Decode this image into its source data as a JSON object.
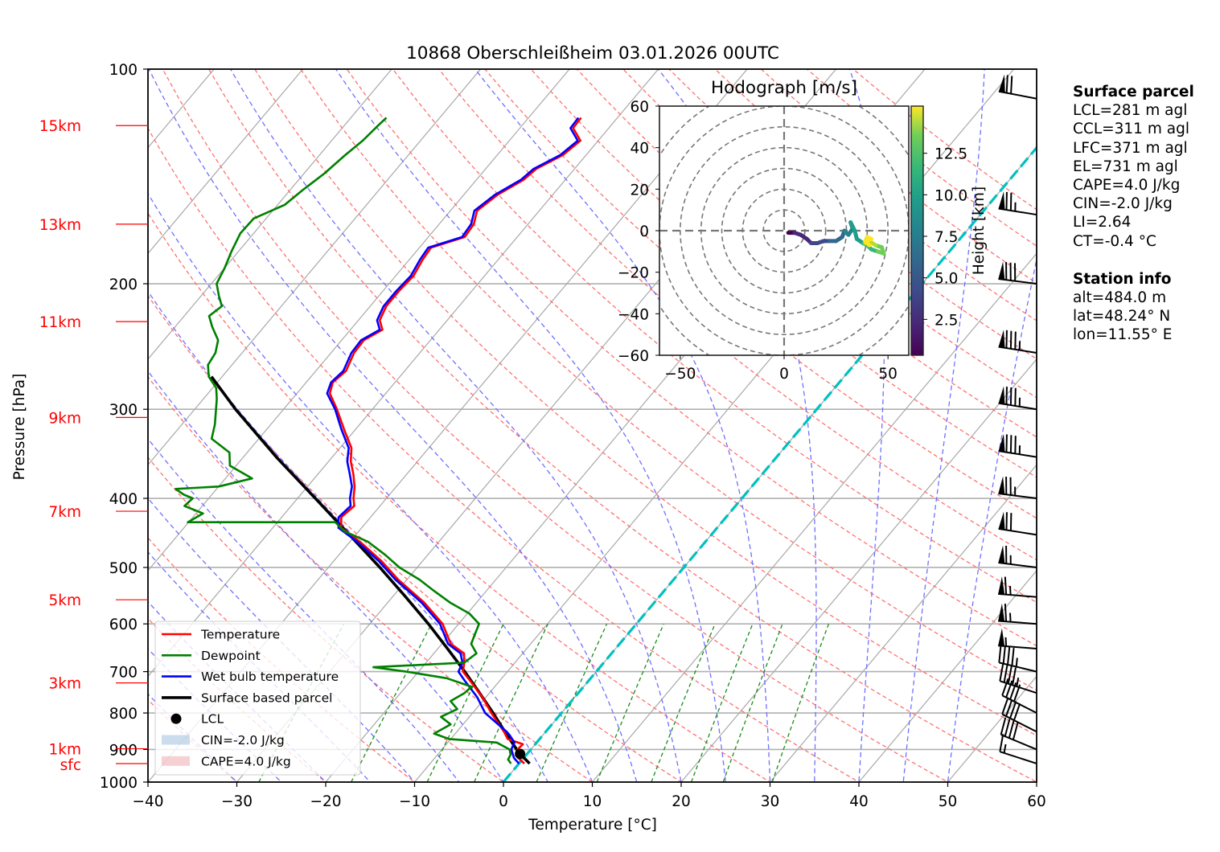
{
  "chart_data": {
    "type": "line",
    "subtype": "skew-T log-p",
    "title": "10868 Oberschleißheim 03.01.2026 00UTC",
    "xlabel": "Temperature [°C]",
    "ylabel": "Pressure [hPa]",
    "xlim": [
      -40,
      60
    ],
    "ylim": [
      1000,
      100
    ],
    "x_ticks": [
      -40,
      -30,
      -20,
      -10,
      0,
      10,
      20,
      30,
      40,
      50,
      60
    ],
    "y_ticks": [
      100,
      200,
      300,
      400,
      500,
      600,
      700,
      800,
      900,
      1000
    ],
    "grid": true,
    "height_labels": [
      {
        "label": "15km",
        "p": 120.0
      },
      {
        "label": "13km",
        "p": 165.0
      },
      {
        "label": "11km",
        "p": 226.0
      },
      {
        "label": "9km",
        "p": 308.0
      },
      {
        "label": "7km",
        "p": 417.0
      },
      {
        "label": "5km",
        "p": 555.0
      },
      {
        "label": "3km",
        "p": 726.0
      },
      {
        "label": "1km",
        "p": 898.0
      },
      {
        "label": "sfc",
        "p": 942.0
      }
    ],
    "legend": {
      "placement": "lower-left",
      "entries": [
        {
          "label": "Temperature",
          "color": "#ff0000",
          "kind": "line"
        },
        {
          "label": "Dewpoint",
          "color": "#008000",
          "kind": "line"
        },
        {
          "label": "Wet bulb temperature",
          "color": "#0000ff",
          "kind": "line"
        },
        {
          "label": "Surface based parcel",
          "color": "#000000",
          "kind": "line"
        },
        {
          "label": "LCL",
          "color": "#000000",
          "kind": "marker"
        },
        {
          "label": "CIN=-2.0 J/kg",
          "color": "#a9c6e0",
          "kind": "patch"
        },
        {
          "label": "CAPE=4.0 J/kg",
          "color": "#f0b3b8",
          "kind": "patch"
        }
      ]
    },
    "series": [
      {
        "name": "Temperature",
        "color": "#ff0000",
        "points": [
          [
            942,
            0.6
          ],
          [
            925,
            -0.6
          ],
          [
            900,
            -1.5
          ],
          [
            885,
            -1.4
          ],
          [
            870,
            -3.6
          ],
          [
            850,
            -4.7
          ],
          [
            800,
            -7.9
          ],
          [
            760,
            -10.4
          ],
          [
            720,
            -13.4
          ],
          [
            700,
            -15.0
          ],
          [
            680,
            -15.7
          ],
          [
            660,
            -16.6
          ],
          [
            640,
            -19.0
          ],
          [
            600,
            -21.8
          ],
          [
            560,
            -25.9
          ],
          [
            520,
            -31.0
          ],
          [
            490,
            -34.6
          ],
          [
            460,
            -38.9
          ],
          [
            440,
            -42.3
          ],
          [
            425,
            -43.3
          ],
          [
            410,
            -42.9
          ],
          [
            400,
            -43.7
          ],
          [
            385,
            -44.7
          ],
          [
            370,
            -46.0
          ],
          [
            355,
            -47.5
          ],
          [
            340,
            -48.7
          ],
          [
            320,
            -51.3
          ],
          [
            300,
            -54.0
          ],
          [
            285,
            -56.3
          ],
          [
            275,
            -57.0
          ],
          [
            265,
            -56.6
          ],
          [
            250,
            -57.4
          ],
          [
            240,
            -57.5
          ],
          [
            232,
            -56.4
          ],
          [
            225,
            -57.6
          ],
          [
            215,
            -58.2
          ],
          [
            205,
            -58.2
          ],
          [
            195,
            -58.0
          ],
          [
            185,
            -58.5
          ],
          [
            178,
            -58.7
          ],
          [
            172,
            -55.9
          ],
          [
            165,
            -56.1
          ],
          [
            158,
            -57.0
          ],
          [
            150,
            -56.2
          ],
          [
            143,
            -54.7
          ],
          [
            138,
            -54.3
          ],
          [
            132,
            -52.6
          ],
          [
            126,
            -52.0
          ],
          [
            121,
            -54.0
          ],
          [
            117,
            -54.1
          ]
        ]
      },
      {
        "name": "Wet bulb temperature",
        "color": "#0000ff",
        "points": [
          [
            942,
            0.0
          ],
          [
            925,
            -1.1
          ],
          [
            900,
            -2.2
          ],
          [
            880,
            -2.5
          ],
          [
            860,
            -3.7
          ],
          [
            850,
            -4.4
          ],
          [
            800,
            -8.6
          ],
          [
            760,
            -11.0
          ],
          [
            720,
            -14.0
          ],
          [
            700,
            -15.5
          ],
          [
            680,
            -15.9
          ],
          [
            660,
            -17.0
          ],
          [
            640,
            -19.3
          ],
          [
            600,
            -22.1
          ],
          [
            560,
            -26.2
          ],
          [
            520,
            -31.3
          ],
          [
            490,
            -34.9
          ],
          [
            460,
            -39.2
          ],
          [
            440,
            -42.6
          ],
          [
            425,
            -43.6
          ],
          [
            410,
            -43.3
          ],
          [
            400,
            -44.1
          ],
          [
            385,
            -45.0
          ],
          [
            370,
            -46.4
          ],
          [
            355,
            -47.9
          ],
          [
            340,
            -49.0
          ],
          [
            320,
            -51.6
          ],
          [
            300,
            -54.2
          ],
          [
            285,
            -56.6
          ],
          [
            275,
            -57.2
          ],
          [
            265,
            -56.9
          ],
          [
            250,
            -57.7
          ],
          [
            240,
            -57.8
          ],
          [
            232,
            -56.7
          ],
          [
            225,
            -57.9
          ],
          [
            215,
            -58.5
          ],
          [
            205,
            -58.5
          ],
          [
            195,
            -58.3
          ],
          [
            185,
            -58.8
          ],
          [
            178,
            -59.0
          ],
          [
            172,
            -56.2
          ],
          [
            165,
            -56.4
          ],
          [
            158,
            -57.3
          ],
          [
            150,
            -56.5
          ],
          [
            143,
            -55.0
          ],
          [
            138,
            -54.6
          ],
          [
            132,
            -52.9
          ],
          [
            126,
            -52.3
          ],
          [
            121,
            -54.3
          ],
          [
            117,
            -54.4
          ]
        ]
      },
      {
        "name": "Dewpoint",
        "color": "#008000",
        "points": [
          [
            942,
            -0.9
          ],
          [
            930,
            -1.6
          ],
          [
            915,
            -1.8
          ],
          [
            900,
            -2.4
          ],
          [
            880,
            -4.5
          ],
          [
            870,
            -10.2
          ],
          [
            855,
            -12.4
          ],
          [
            830,
            -11.4
          ],
          [
            810,
            -13.2
          ],
          [
            790,
            -12.1
          ],
          [
            770,
            -13.6
          ],
          [
            750,
            -12.8
          ],
          [
            735,
            -12.6
          ],
          [
            715,
            -16.2
          ],
          [
            700,
            -21.4
          ],
          [
            690,
            -25.5
          ],
          [
            680,
            -15.7
          ],
          [
            660,
            -15.2
          ],
          [
            640,
            -16.7
          ],
          [
            620,
            -17.2
          ],
          [
            600,
            -17.7
          ],
          [
            580,
            -19.8
          ],
          [
            560,
            -23.0
          ],
          [
            540,
            -25.8
          ],
          [
            520,
            -28.6
          ],
          [
            500,
            -32.0
          ],
          [
            480,
            -34.8
          ],
          [
            460,
            -38.0
          ],
          [
            445,
            -41.6
          ],
          [
            432,
            -43.5
          ],
          [
            432,
            -60.1
          ],
          [
            420,
            -59.2
          ],
          [
            410,
            -62.0
          ],
          [
            400,
            -61.8
          ],
          [
            395,
            -63.2
          ],
          [
            388,
            -64.6
          ],
          [
            385,
            -60.0
          ],
          [
            375,
            -57.0
          ],
          [
            360,
            -60.7
          ],
          [
            345,
            -62.0
          ],
          [
            330,
            -65.3
          ],
          [
            315,
            -66.3
          ],
          [
            300,
            -67.6
          ],
          [
            290,
            -68.5
          ],
          [
            280,
            -69.6
          ],
          [
            270,
            -71.5
          ],
          [
            260,
            -72.7
          ],
          [
            250,
            -73.0
          ],
          [
            240,
            -73.9
          ],
          [
            230,
            -75.8
          ],
          [
            222,
            -77.2
          ],
          [
            215,
            -76.7
          ],
          [
            208,
            -78.0
          ],
          [
            200,
            -79.4
          ],
          [
            190,
            -80.0
          ],
          [
            180,
            -80.8
          ],
          [
            170,
            -81.5
          ],
          [
            162,
            -81.4
          ],
          [
            155,
            -79.2
          ],
          [
            148,
            -78.6
          ],
          [
            140,
            -77.7
          ],
          [
            132,
            -77.1
          ],
          [
            126,
            -76.5
          ],
          [
            120,
            -76.2
          ],
          [
            117,
            -76.0
          ]
        ]
      },
      {
        "name": "Surface based parcel",
        "color": "#000000",
        "points": [
          [
            942,
            1.2
          ],
          [
            913,
            -0.8
          ],
          [
            900,
            -1.6
          ],
          [
            850,
            -4.6
          ],
          [
            800,
            -7.7
          ],
          [
            750,
            -11.1
          ],
          [
            700,
            -14.8
          ],
          [
            650,
            -18.9
          ],
          [
            600,
            -23.4
          ],
          [
            550,
            -28.5
          ],
          [
            500,
            -34.2
          ],
          [
            450,
            -40.7
          ],
          [
            400,
            -48.0
          ],
          [
            350,
            -56.3
          ],
          [
            300,
            -65.4
          ],
          [
            270,
            -71.2
          ]
        ]
      }
    ],
    "lcl": {
      "p": 913,
      "t": -0.8
    },
    "freezing_level_line": {
      "name": "0°C isotherm",
      "color": "#00c0c0",
      "t": 0
    },
    "wind_barbs": [
      {
        "p": 942,
        "speed_kt": 15,
        "dir_deg": 290
      },
      {
        "p": 900,
        "speed_kt": 40,
        "dir_deg": 295
      },
      {
        "p": 850,
        "speed_kt": 40,
        "dir_deg": 300
      },
      {
        "p": 800,
        "speed_kt": 40,
        "dir_deg": 300
      },
      {
        "p": 750,
        "speed_kt": 45,
        "dir_deg": 290
      },
      {
        "p": 700,
        "speed_kt": 45,
        "dir_deg": 285
      },
      {
        "p": 650,
        "speed_kt": 55,
        "dir_deg": 275
      },
      {
        "p": 600,
        "speed_kt": 65,
        "dir_deg": 275
      },
      {
        "p": 550,
        "speed_kt": 65,
        "dir_deg": 275
      },
      {
        "p": 500,
        "speed_kt": 65,
        "dir_deg": 278
      },
      {
        "p": 450,
        "speed_kt": 70,
        "dir_deg": 280
      },
      {
        "p": 400,
        "speed_kt": 75,
        "dir_deg": 278
      },
      {
        "p": 350,
        "speed_kt": 85,
        "dir_deg": 280
      },
      {
        "p": 300,
        "speed_kt": 85,
        "dir_deg": 280
      },
      {
        "p": 250,
        "speed_kt": 85,
        "dir_deg": 280
      },
      {
        "p": 200,
        "speed_kt": 80,
        "dir_deg": 278
      },
      {
        "p": 160,
        "speed_kt": 75,
        "dir_deg": 280
      },
      {
        "p": 110,
        "speed_kt": 70,
        "dir_deg": 282
      }
    ]
  },
  "hodograph": {
    "title": "Hodograph [m/s]",
    "xlim": [
      -60,
      60
    ],
    "ylim": [
      -60,
      60
    ],
    "x_ticks": [
      -50,
      0,
      50
    ],
    "y_ticks": [
      -60,
      -40,
      -20,
      0,
      20,
      40,
      60
    ],
    "rings": [
      10,
      20,
      30,
      40,
      50,
      60,
      70
    ],
    "colorbar": {
      "label": "Height [km]",
      "ticks": [
        "2.5",
        "5.0",
        "7.5",
        "10.0",
        "12.5"
      ],
      "range": [
        0,
        15
      ]
    },
    "points": [
      [
        2,
        -1,
        0.5
      ],
      [
        5,
        -1,
        1.0
      ],
      [
        8,
        -2,
        1.5
      ],
      [
        11,
        -4,
        2.0
      ],
      [
        13,
        -6,
        2.5
      ],
      [
        16,
        -6,
        3.0
      ],
      [
        19,
        -5,
        3.5
      ],
      [
        22,
        -5,
        4.0
      ],
      [
        25,
        -5,
        4.5
      ],
      [
        28,
        -3,
        5.0
      ],
      [
        29,
        0,
        5.5
      ],
      [
        31,
        -2,
        6.0
      ],
      [
        33,
        1,
        6.5
      ],
      [
        32,
        4,
        7.0
      ],
      [
        34,
        0,
        7.5
      ],
      [
        35,
        -4,
        8.0
      ],
      [
        38,
        -6,
        8.5
      ],
      [
        40,
        -7,
        9.0
      ],
      [
        42,
        -9,
        9.5
      ],
      [
        45,
        -10,
        10.0
      ],
      [
        48,
        -11,
        10.5
      ],
      [
        47,
        -8,
        11.0
      ],
      [
        44,
        -7,
        11.5
      ],
      [
        41,
        -5,
        12.0
      ],
      [
        39,
        -6,
        12.5
      ],
      [
        40,
        -3,
        13.0
      ],
      [
        42,
        -4,
        13.5
      ],
      [
        39,
        -5,
        14.0
      ],
      [
        41,
        -7,
        14.5
      ]
    ]
  },
  "info_panel": {
    "surface_parcel": {
      "heading": "Surface parcel",
      "lines": [
        "LCL=281 m agl",
        "CCL=311 m agl",
        "LFC=371 m agl",
        "EL=731 m agl",
        "CAPE=4.0 J/kg",
        "CIN=-2.0 J/kg",
        "LI=2.64",
        "CT=-0.4 °C"
      ]
    },
    "station_info": {
      "heading": "Station info",
      "lines": [
        "alt=484.0 m",
        "lat=48.24° N",
        "lon=11.55° E"
      ]
    }
  }
}
